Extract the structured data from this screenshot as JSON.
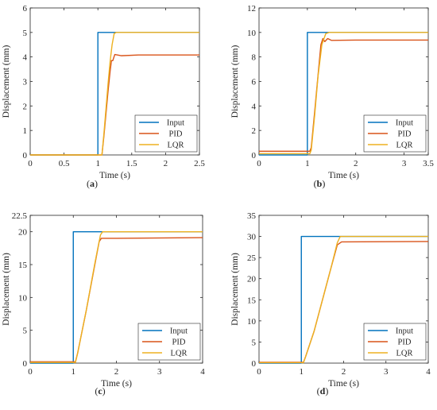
{
  "colors": {
    "input": "#0072BD",
    "pid": "#D95319",
    "lqr": "#EDB120"
  },
  "chart_data": [
    {
      "type": "line",
      "panel_label": "(a)",
      "xlabel": "Time (s)",
      "ylabel": "Displacement (mm)",
      "xlim": [
        0,
        2.5
      ],
      "ylim": [
        0,
        6
      ],
      "xticks": [
        "0",
        "0.5",
        "1",
        "1.5",
        "2",
        "2.5"
      ],
      "xtick_values": [
        0,
        0.5,
        1,
        1.5,
        2,
        2.5
      ],
      "yticks": [
        "0",
        "1",
        "2",
        "3",
        "4",
        "5",
        "6"
      ],
      "ytick_values": [
        0,
        1,
        2,
        3,
        4,
        5,
        6
      ],
      "grid": false,
      "legend_position": "bottom-right",
      "series": [
        {
          "name": "Input",
          "color_key": "input",
          "x": [
            0,
            1.0,
            1.0,
            2.5
          ],
          "y": [
            0,
            0,
            5,
            5
          ]
        },
        {
          "name": "PID",
          "color_key": "pid",
          "x": [
            0,
            1.06,
            1.09,
            1.12,
            1.15,
            1.18,
            1.2,
            1.22,
            1.25,
            1.35,
            1.6,
            2.0,
            2.5
          ],
          "y": [
            0,
            0,
            0.8,
            1.7,
            2.6,
            3.4,
            3.85,
            3.85,
            4.1,
            4.05,
            4.08,
            4.08,
            4.08
          ]
        },
        {
          "name": "LQR",
          "color_key": "lqr",
          "x": [
            0,
            1.06,
            1.09,
            1.12,
            1.15,
            1.18,
            1.21,
            1.24,
            1.27,
            1.5,
            2.0,
            2.5
          ],
          "y": [
            0,
            0,
            0.9,
            1.9,
            2.9,
            3.8,
            4.5,
            4.95,
            5.0,
            5.0,
            5.0,
            5.0
          ]
        }
      ]
    },
    {
      "type": "line",
      "panel_label": "(b)",
      "xlabel": "Time (s)",
      "ylabel": "Displacement (mm)",
      "xlim": [
        0,
        3.5
      ],
      "ylim": [
        0,
        12
      ],
      "xticks": [
        "0",
        "1",
        "2",
        "3",
        "3.5"
      ],
      "xtick_values": [
        0,
        1,
        2,
        3,
        3.5
      ],
      "yticks": [
        "0",
        "2",
        "4",
        "6",
        "8",
        "10",
        "12"
      ],
      "ytick_values": [
        0,
        2,
        4,
        6,
        8,
        10,
        12
      ],
      "grid": false,
      "legend_position": "bottom-right",
      "series": [
        {
          "name": "Input",
          "color_key": "input",
          "x": [
            0,
            1.0,
            1.0,
            3.5
          ],
          "y": [
            0,
            0,
            10,
            10
          ]
        },
        {
          "name": "PID",
          "color_key": "pid",
          "x": [
            0,
            1.05,
            1.08,
            1.15,
            1.22,
            1.28,
            1.32,
            1.36,
            1.42,
            1.5,
            2.0,
            3.5
          ],
          "y": [
            0.3,
            0.3,
            0.6,
            3.5,
            6.5,
            9.0,
            9.5,
            9.25,
            9.5,
            9.35,
            9.38,
            9.38
          ]
        },
        {
          "name": "LQR",
          "color_key": "lqr",
          "x": [
            0,
            1.05,
            1.08,
            1.15,
            1.22,
            1.3,
            1.38,
            1.45,
            1.6,
            2.0,
            3.5
          ],
          "y": [
            0.1,
            0.1,
            0.4,
            3.2,
            6.4,
            9.0,
            9.9,
            10.0,
            10.0,
            10.0,
            10.0
          ]
        }
      ]
    },
    {
      "type": "line",
      "panel_label": "(c)",
      "xlabel": "Time (s)",
      "ylabel": "Displacement (mm)",
      "xlim": [
        0,
        4
      ],
      "ylim": [
        0,
        22.5
      ],
      "xticks": [
        "0",
        "1",
        "2",
        "3",
        "4"
      ],
      "xtick_values": [
        0,
        1,
        2,
        3,
        4
      ],
      "yticks": [
        "0",
        "5",
        "10",
        "15",
        "20",
        "22.5"
      ],
      "ytick_values": [
        0,
        5,
        10,
        15,
        20,
        22.5
      ],
      "grid": false,
      "legend_position": "bottom-right",
      "series": [
        {
          "name": "Input",
          "color_key": "input",
          "x": [
            0,
            1.0,
            1.0,
            4.0
          ],
          "y": [
            0,
            0,
            20,
            20
          ]
        },
        {
          "name": "PID",
          "color_key": "pid",
          "x": [
            0,
            1.05,
            1.1,
            1.3,
            1.5,
            1.6,
            1.65,
            2.0,
            4.0
          ],
          "y": [
            0.2,
            0.2,
            1.5,
            8.0,
            15.0,
            18.5,
            19.0,
            19.0,
            19.1
          ]
        },
        {
          "name": "LQR",
          "color_key": "lqr",
          "x": [
            0,
            1.05,
            1.1,
            1.3,
            1.5,
            1.63,
            1.68,
            2.0,
            4.0
          ],
          "y": [
            0.1,
            0.1,
            1.5,
            8.0,
            15.2,
            19.5,
            20.0,
            20.0,
            20.0
          ]
        }
      ]
    },
    {
      "type": "line",
      "panel_label": "(d)",
      "xlabel": "Time (s)",
      "ylabel": "Displacement (mm)",
      "xlim": [
        0,
        4
      ],
      "ylim": [
        0,
        35
      ],
      "xticks": [
        "0",
        "1",
        "2",
        "3",
        "4"
      ],
      "xtick_values": [
        0,
        1,
        2,
        3,
        4
      ],
      "yticks": [
        "0",
        "5",
        "10",
        "15",
        "20",
        "25",
        "30",
        "35"
      ],
      "ytick_values": [
        0,
        5,
        10,
        15,
        20,
        25,
        30,
        35
      ],
      "grid": false,
      "legend_position": "bottom-right",
      "series": [
        {
          "name": "Input",
          "color_key": "input",
          "x": [
            0,
            1.0,
            1.0,
            4.0
          ],
          "y": [
            0,
            0,
            30,
            30
          ]
        },
        {
          "name": "PID",
          "color_key": "pid",
          "x": [
            0,
            1.05,
            1.1,
            1.3,
            1.5,
            1.7,
            1.85,
            1.95,
            4.0
          ],
          "y": [
            0.2,
            0.2,
            1.5,
            7.5,
            15.0,
            22.5,
            28.0,
            28.7,
            28.8
          ]
        },
        {
          "name": "LQR",
          "color_key": "lqr",
          "x": [
            0,
            1.05,
            1.1,
            1.3,
            1.5,
            1.7,
            1.85,
            1.92,
            4.0
          ],
          "y": [
            0.1,
            0.1,
            1.5,
            7.5,
            15.0,
            22.5,
            28.5,
            30.0,
            30.0
          ]
        }
      ]
    }
  ]
}
